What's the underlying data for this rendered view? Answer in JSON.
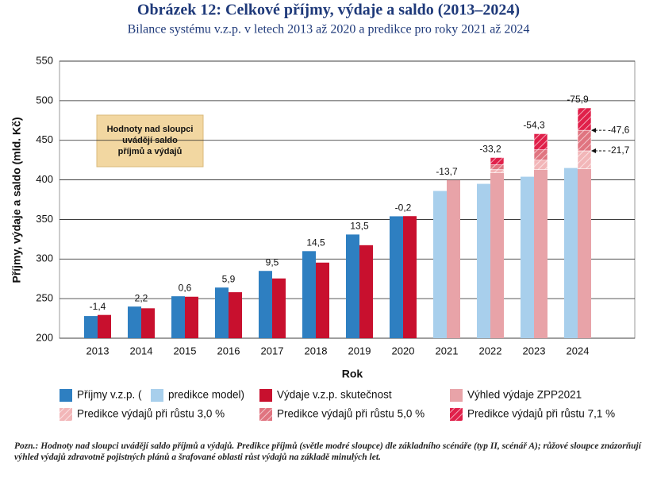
{
  "chart_data": {
    "type": "bar",
    "title": "Obrázek 12: Celkové příjmy, výdaje a saldo (2013–2024)",
    "subtitle": "Bilance systému v.z.p. v letech 2013 až 2020 a predikce pro roky 2021 až 2024",
    "x_label": "Rok",
    "y_label": "Příjmy, výdaje a saldo (mld. Kč)",
    "categories": [
      "2013",
      "2014",
      "2015",
      "2016",
      "2017",
      "2018",
      "2019",
      "2020",
      "2021",
      "2022",
      "2023",
      "2024"
    ],
    "series": [
      {
        "name": "Příjmy v.z.p. (",
        "color": "#2e7fc1",
        "values": [
          228,
          240,
          253,
          264,
          285,
          310,
          331,
          354,
          null,
          null,
          null,
          null
        ]
      },
      {
        "name": "predikce model)",
        "color": "#a8cfec",
        "values": [
          null,
          null,
          null,
          null,
          null,
          null,
          null,
          null,
          386,
          395,
          404,
          415
        ]
      },
      {
        "name": "Výdaje v.z.p. skutečnost",
        "color": "#c8102e",
        "values": [
          229.4,
          237.8,
          252.4,
          258.1,
          275.5,
          295.5,
          317.5,
          354.2,
          null,
          null,
          null,
          null
        ]
      },
      {
        "name": "Výhled výdaje ZPP2021",
        "color": "#e8a3a8",
        "values": [
          null,
          null,
          null,
          null,
          null,
          null,
          null,
          null,
          399.7,
          409,
          413,
          414
        ]
      },
      {
        "name": "Predikce výdajů při růstu 3,0 %",
        "color": "#f2b6b8",
        "hatch": true,
        "values": [
          null,
          null,
          null,
          null,
          null,
          null,
          null,
          null,
          null,
          4,
          12,
          22.7
        ]
      },
      {
        "name": "Predikce výdajů při růstu 5,0 %",
        "color": "#e07480",
        "hatch": true,
        "values": [
          null,
          null,
          null,
          null,
          null,
          null,
          null,
          null,
          null,
          6,
          13,
          25.9
        ]
      },
      {
        "name": "Predikce výdajů při růstu 7,1 %",
        "color": "#e0204a",
        "hatch": true,
        "values": [
          null,
          null,
          null,
          null,
          null,
          null,
          null,
          null,
          null,
          9.2,
          20.3,
          28.3
        ]
      }
    ],
    "saldo": {
      "values": [
        -1.4,
        2.2,
        0.6,
        5.9,
        9.5,
        14.5,
        13.5,
        -0.2,
        -13.7,
        -33.2,
        -54.3,
        -75.9
      ],
      "value_labels": [
        "-1,4",
        "2,2",
        "0,6",
        "5,9",
        "9,5",
        "14,5",
        "13,5",
        "-0,2",
        "-13,7",
        "-33,2",
        "-54,3",
        "-75,9"
      ]
    },
    "annotations": [
      {
        "value": -47.6,
        "label": "-47,6"
      },
      {
        "value": -21.7,
        "label": "-21,7"
      }
    ],
    "info_box": [
      "Hodnoty nad sloupci",
      "uvádějí saldo",
      "příjmů a výdajů"
    ],
    "note": "Pozn.: Hodnoty nad sloupci uvádějí saldo příjmů a výdajů. Predikce příjmů (světle modré sloupce) dle základního scénáře (typ II, scénář A); růžové sloupce znázorňují výhled výdajů zdravotně pojistných plánů a šrafované oblasti růst výdajů na základě minulých let.",
    "ylim": [
      200,
      550
    ],
    "yticks": [
      200,
      250,
      300,
      350,
      400,
      450,
      500,
      550
    ],
    "grid": true
  }
}
